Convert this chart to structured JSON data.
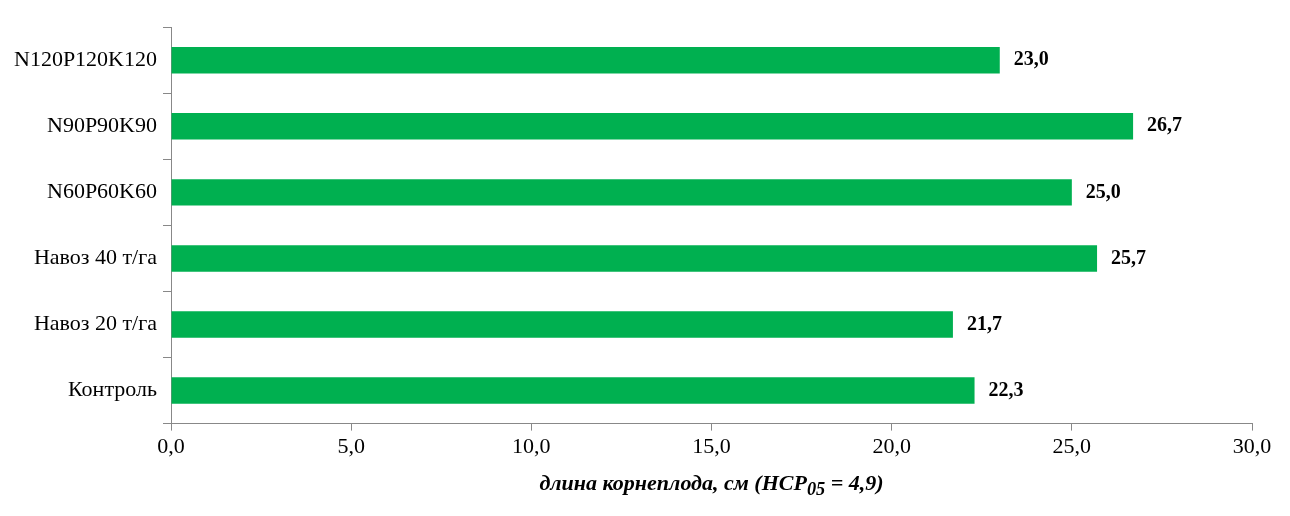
{
  "chart_data": {
    "type": "bar",
    "orientation": "horizontal",
    "xlabel": "длина корнеплода, см (НСР$_{05}$ = 4,9)",
    "categories": [
      "N120P120K120",
      "N90P90K90",
      "N60P60K60",
      "Навоз 40 т/га",
      "Навоз 20 т/га",
      "Контроль"
    ],
    "values": [
      23.0,
      26.7,
      25.0,
      25.7,
      21.7,
      22.3
    ],
    "value_labels": [
      "23,0",
      "26,7",
      "25,0",
      "25,7",
      "21,7",
      "22,3"
    ],
    "color": "#00b050",
    "xlim": [
      0,
      30
    ],
    "xticks": [
      {
        "value": 0,
        "label": "0,0"
      },
      {
        "value": 5,
        "label": "5,0"
      },
      {
        "value": 10,
        "label": "10,0"
      },
      {
        "value": 15,
        "label": "15,0"
      },
      {
        "value": 20,
        "label": "20,0"
      },
      {
        "value": 25,
        "label": "25,0"
      },
      {
        "value": 30,
        "label": "30,0"
      }
    ],
    "grid": false,
    "legend": false
  }
}
